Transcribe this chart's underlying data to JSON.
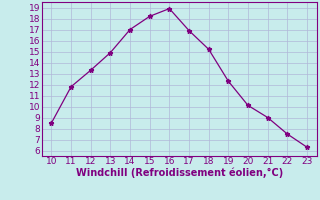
{
  "x": [
    10,
    11,
    12,
    13,
    14,
    15,
    16,
    17,
    18,
    19,
    20,
    21,
    22,
    23
  ],
  "y": [
    8.5,
    11.8,
    13.3,
    14.9,
    17.0,
    18.2,
    18.9,
    16.9,
    15.2,
    12.3,
    10.1,
    9.0,
    7.5,
    6.3
  ],
  "line_color": "#800080",
  "marker": "*",
  "marker_color": "#800080",
  "bg_color": "#c8ecec",
  "plot_bg_color": "#c8ecec",
  "grid_color": "#b0b8d8",
  "xlabel": "Windchill (Refroidissement éolien,°C)",
  "xlabel_color": "#800080",
  "tick_color": "#800080",
  "spine_color": "#800080",
  "xlim": [
    9.5,
    23.5
  ],
  "ylim": [
    5.5,
    19.5
  ],
  "xticks": [
    10,
    11,
    12,
    13,
    14,
    15,
    16,
    17,
    18,
    19,
    20,
    21,
    22,
    23
  ],
  "yticks": [
    6,
    7,
    8,
    9,
    10,
    11,
    12,
    13,
    14,
    15,
    16,
    17,
    18,
    19
  ],
  "label_fontsize": 7,
  "tick_fontsize": 6.5,
  "marker_size": 3.5,
  "line_width": 0.9
}
